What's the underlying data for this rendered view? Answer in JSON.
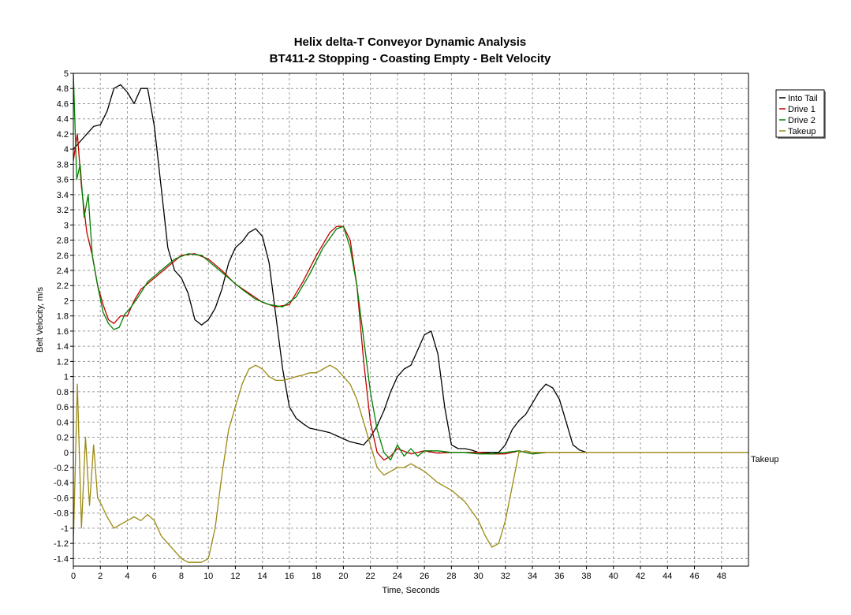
{
  "chart_data": {
    "type": "line",
    "title": "Helix delta-T Conveyor Dynamic Analysis",
    "subtitle": "BT411-2 Stopping - Coasting Empty - Belt Velocity",
    "xlabel": "Time, Seconds",
    "ylabel": "Belt Velocity, m/s",
    "xlim": [
      0,
      50
    ],
    "ylim": [
      -1.5,
      5
    ],
    "x_ticks": [
      0,
      2,
      4,
      6,
      8,
      10,
      12,
      14,
      16,
      18,
      20,
      22,
      24,
      26,
      28,
      30,
      32,
      34,
      36,
      38,
      40,
      42,
      44,
      46,
      48
    ],
    "y_ticks": [
      -1.4,
      -1.2,
      -1,
      -0.8,
      -0.6,
      -0.4,
      -0.2,
      0,
      0.2,
      0.4,
      0.6,
      0.8,
      1,
      1.2,
      1.4,
      1.6,
      1.8,
      2,
      2.2,
      2.4,
      2.6,
      2.8,
      3,
      3.2,
      3.4,
      3.6,
      3.8,
      4,
      4.2,
      4.4,
      4.6,
      4.8,
      5
    ],
    "grid": true,
    "legend_position": "top-right",
    "end_label": "Takeup",
    "series": [
      {
        "name": "Into Tail",
        "color": "#000000",
        "x": [
          0,
          0.5,
          1,
          1.5,
          2,
          2.5,
          3,
          3.5,
          4,
          4.5,
          5,
          5.5,
          6,
          6.5,
          7,
          7.5,
          8,
          8.5,
          9,
          9.5,
          10,
          10.5,
          11,
          11.5,
          12,
          12.5,
          13,
          13.5,
          14,
          14.5,
          15,
          15.5,
          16,
          16.5,
          17,
          17.5,
          18,
          18.5,
          19,
          19.5,
          20,
          20.5,
          21,
          21.5,
          22,
          22.5,
          23,
          23.5,
          24,
          24.5,
          25,
          25.5,
          26,
          26.5,
          27,
          27.5,
          28,
          28.5,
          29,
          29.5,
          30,
          30.5,
          31,
          31.5,
          32,
          32.5,
          33,
          33.5,
          34,
          34.5,
          35,
          35.5,
          36,
          36.5,
          37,
          37.5,
          38
        ],
        "y": [
          4.0,
          4.1,
          4.2,
          4.3,
          4.32,
          4.5,
          4.8,
          4.85,
          4.75,
          4.6,
          4.8,
          4.8,
          4.3,
          3.5,
          2.7,
          2.4,
          2.3,
          2.1,
          1.75,
          1.68,
          1.75,
          1.9,
          2.15,
          2.5,
          2.7,
          2.78,
          2.9,
          2.95,
          2.85,
          2.5,
          1.8,
          1.1,
          0.6,
          0.45,
          0.38,
          0.32,
          0.3,
          0.28,
          0.26,
          0.22,
          0.18,
          0.14,
          0.12,
          0.1,
          0.2,
          0.35,
          0.55,
          0.8,
          1.0,
          1.1,
          1.15,
          1.35,
          1.55,
          1.6,
          1.3,
          0.6,
          0.1,
          0.05,
          0.05,
          0.03,
          0.0,
          0.0,
          0.0,
          0.0,
          0.1,
          0.3,
          0.42,
          0.5,
          0.65,
          0.8,
          0.9,
          0.85,
          0.7,
          0.4,
          0.1,
          0.03,
          0.0
        ]
      },
      {
        "name": "Drive 1",
        "color": "#c00000",
        "x": [
          0,
          0.3,
          0.6,
          1,
          1.4,
          1.8,
          2.2,
          2.6,
          3,
          3.5,
          4,
          4.5,
          5,
          6,
          7,
          8,
          9,
          10,
          11,
          12,
          13,
          14,
          15,
          16,
          17,
          18,
          19,
          19.5,
          20,
          20.5,
          21,
          21.5,
          22,
          22.5,
          23,
          23.5,
          24,
          25,
          26,
          27,
          28,
          29,
          30,
          31,
          32,
          33,
          34,
          35,
          36,
          37,
          38
        ],
        "y": [
          3.85,
          4.2,
          3.5,
          2.9,
          2.6,
          2.2,
          1.95,
          1.75,
          1.7,
          1.8,
          1.8,
          2.0,
          2.15,
          2.3,
          2.45,
          2.6,
          2.62,
          2.55,
          2.4,
          2.22,
          2.1,
          1.98,
          1.92,
          1.95,
          2.25,
          2.6,
          2.9,
          2.98,
          2.98,
          2.8,
          2.2,
          1.2,
          0.4,
          0.0,
          -0.1,
          -0.05,
          0.05,
          -0.02,
          0.02,
          -0.01,
          0.0,
          0.0,
          0.0,
          -0.02,
          -0.02,
          0.02,
          -0.02,
          0.0,
          0.0,
          0.0,
          0.0
        ]
      },
      {
        "name": "Drive 2",
        "color": "#008000",
        "x": [
          0,
          0.25,
          0.5,
          0.8,
          1.1,
          1.4,
          1.8,
          2.2,
          2.6,
          3,
          3.4,
          3.8,
          4.2,
          4.8,
          5.5,
          6.5,
          7.5,
          8.5,
          9.5,
          10.5,
          11.5,
          12.5,
          13.5,
          14.5,
          15.5,
          16.5,
          17.5,
          18.5,
          19.5,
          20,
          20.5,
          21,
          21.5,
          22,
          22.5,
          23,
          23.5,
          24,
          24.5,
          25,
          25.5,
          26,
          27,
          28,
          29,
          30,
          31,
          32,
          33,
          34,
          35,
          36,
          38
        ],
        "y": [
          5.0,
          3.6,
          3.8,
          3.1,
          3.4,
          2.6,
          2.2,
          1.85,
          1.7,
          1.62,
          1.65,
          1.82,
          1.9,
          2.05,
          2.25,
          2.4,
          2.55,
          2.62,
          2.6,
          2.45,
          2.3,
          2.15,
          2.02,
          1.95,
          1.92,
          2.05,
          2.35,
          2.7,
          2.95,
          2.98,
          2.7,
          2.2,
          1.5,
          0.8,
          0.3,
          0.0,
          -0.1,
          0.1,
          -0.05,
          0.05,
          -0.05,
          0.02,
          0.02,
          0.0,
          0.0,
          -0.02,
          -0.02,
          0.0,
          0.02,
          -0.02,
          0.0,
          0.0,
          0.0
        ]
      },
      {
        "name": "Takeup",
        "color": "#9c8a14",
        "x": [
          0,
          0.3,
          0.6,
          0.9,
          1.2,
          1.5,
          1.8,
          2.1,
          2.5,
          3,
          3.5,
          4,
          4.5,
          5,
          5.5,
          6,
          6.5,
          7,
          7.5,
          8,
          8.5,
          9,
          9.5,
          10,
          10.5,
          11,
          11.5,
          12,
          12.5,
          13,
          13.5,
          14,
          14.5,
          15,
          15.5,
          16,
          16.5,
          17,
          17.5,
          18,
          18.5,
          19,
          19.5,
          20,
          20.5,
          21,
          21.5,
          22,
          22.5,
          23,
          23.5,
          24,
          24.5,
          25,
          26,
          27,
          28,
          29,
          30,
          30.5,
          31,
          31.5,
          32,
          32.5,
          33,
          33.5,
          34,
          36,
          40,
          45,
          50
        ],
        "y": [
          -1.2,
          0.9,
          -1.0,
          0.2,
          -0.7,
          0.1,
          -0.6,
          -0.7,
          -0.85,
          -1.0,
          -0.95,
          -0.9,
          -0.85,
          -0.9,
          -0.82,
          -0.9,
          -1.1,
          -1.2,
          -1.3,
          -1.4,
          -1.45,
          -1.45,
          -1.45,
          -1.4,
          -1.0,
          -0.3,
          0.3,
          0.6,
          0.9,
          1.1,
          1.15,
          1.1,
          1.0,
          0.95,
          0.95,
          0.97,
          1.0,
          1.02,
          1.05,
          1.05,
          1.1,
          1.15,
          1.1,
          1.0,
          0.9,
          0.7,
          0.4,
          0.1,
          -0.2,
          -0.3,
          -0.25,
          -0.2,
          -0.2,
          -0.15,
          -0.25,
          -0.4,
          -0.5,
          -0.65,
          -0.9,
          -1.1,
          -1.25,
          -1.2,
          -0.9,
          -0.45,
          0.0,
          0.02,
          0.0,
          0.0,
          0.0,
          0.0,
          0.0
        ]
      }
    ]
  }
}
